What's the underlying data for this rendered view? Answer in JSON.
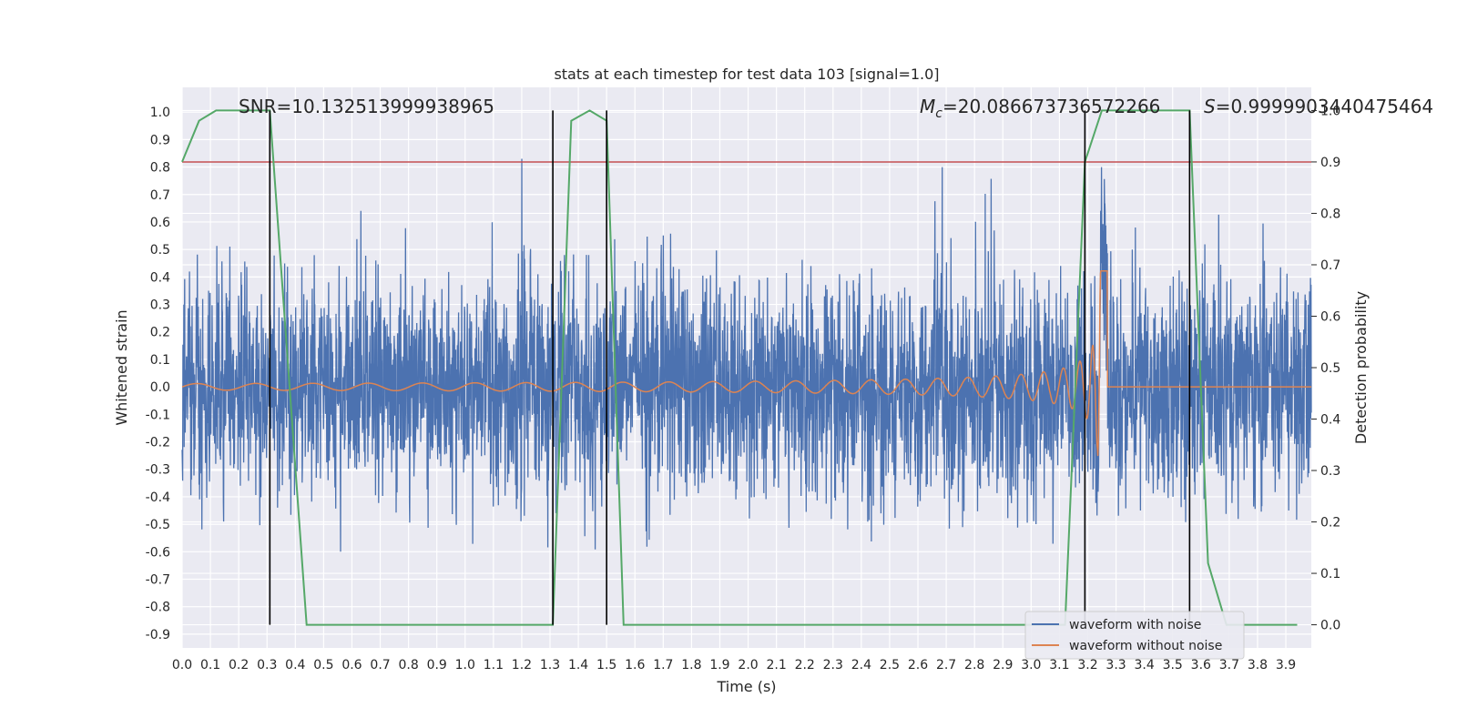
{
  "chart_data": {
    "type": "line",
    "title": "stats at each timestep for test data 103 [signal=1.0]",
    "xlabel": "Time (s)",
    "ylabel": "Whitened strain",
    "y2label": "Detection probability",
    "xlim": [
      0.0,
      3.99
    ],
    "ylim": [
      -0.95,
      1.09
    ],
    "y2lim": [
      -0.045,
      1.045
    ],
    "grid": true,
    "legend_position": "lower-right",
    "x_ticks": [
      "0.0",
      "0.1",
      "0.2",
      "0.3",
      "0.4",
      "0.5",
      "0.6",
      "0.7",
      "0.8",
      "0.9",
      "1.0",
      "1.1",
      "1.2",
      "1.3",
      "1.4",
      "1.5",
      "1.6",
      "1.7",
      "1.8",
      "1.9",
      "2.0",
      "2.1",
      "2.2",
      "2.3",
      "2.4",
      "2.5",
      "2.6",
      "2.7",
      "2.8",
      "2.9",
      "3.0",
      "3.1",
      "3.2",
      "3.3",
      "3.4",
      "3.5",
      "3.6",
      "3.7",
      "3.8",
      "3.9"
    ],
    "y_ticks": [
      "1.0",
      "0.9",
      "0.8",
      "0.7",
      "0.6",
      "0.5",
      "0.4",
      "0.3",
      "0.2",
      "0.1",
      "0.0",
      "-0.1",
      "-0.2",
      "-0.3",
      "-0.4",
      "-0.5",
      "-0.6",
      "-0.7",
      "-0.8",
      "-0.9"
    ],
    "y2_ticks": [
      "1.0",
      "0.9",
      "0.8",
      "0.7",
      "0.6",
      "0.5",
      "0.4",
      "0.3",
      "0.2",
      "0.1",
      "0.0"
    ],
    "annotations": {
      "snr": "SNR=10.132513999938965",
      "mc_symbol": "M",
      "mc_sub": "c",
      "mc_value": "=20.086673736572266",
      "s_symbol": "S",
      "s_value": "=0.9999903440475464"
    },
    "series": [
      {
        "name": "waveform with noise",
        "color": "#4c72b0",
        "noise_amplitude": 0.24,
        "peak_at": [
          1.2,
          0.83
        ]
      },
      {
        "name": "waveform without noise",
        "color": "#dd8452",
        "chirp_start_amplitude": 0.012,
        "chirp_peak_amplitude": 0.37,
        "merger_time": 3.25
      }
    ],
    "detection_probability": {
      "color": "#55a868",
      "points": [
        [
          0.0,
          0.9
        ],
        [
          0.06,
          0.98
        ],
        [
          0.12,
          1.0
        ],
        [
          0.31,
          1.0
        ],
        [
          0.375,
          0.5
        ],
        [
          0.44,
          0.0
        ],
        [
          1.25,
          0.0
        ],
        [
          1.31,
          0.0
        ],
        [
          1.375,
          0.98
        ],
        [
          1.44,
          1.0
        ],
        [
          1.5,
          0.98
        ],
        [
          1.56,
          0.0
        ],
        [
          3.12,
          0.0
        ],
        [
          3.19,
          0.9
        ],
        [
          3.25,
          1.0
        ],
        [
          3.56,
          1.0
        ],
        [
          3.625,
          0.12
        ],
        [
          3.69,
          0.0
        ],
        [
          3.94,
          0.0
        ]
      ]
    },
    "threshold": {
      "color": "#c44e52",
      "value": 0.9
    },
    "event_markers": [
      0.31,
      1.31,
      1.5,
      3.19,
      3.56
    ]
  }
}
